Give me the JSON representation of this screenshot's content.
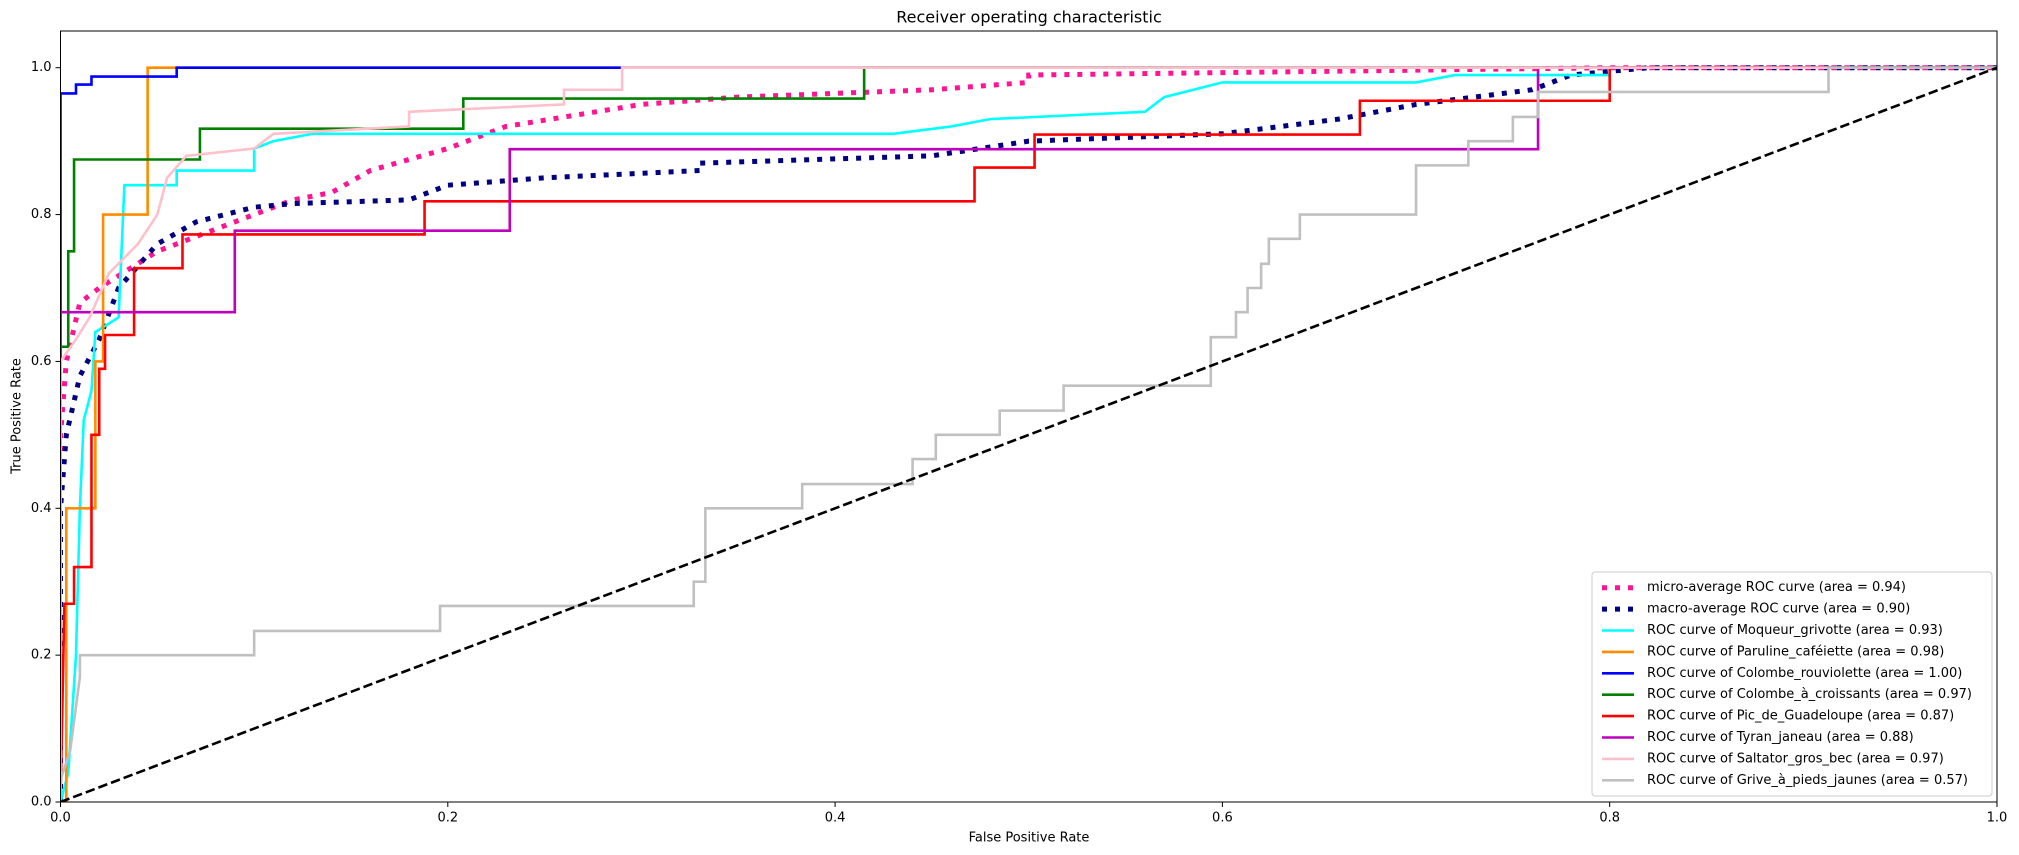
{
  "chart_data": {
    "type": "line",
    "title": "Receiver operating characteristic",
    "xlabel": "False Positive Rate",
    "ylabel": "True Positive Rate",
    "xlim": [
      0,
      1
    ],
    "ylim": [
      0,
      1.05
    ],
    "xticks": [
      {
        "value": 0,
        "label": "0.0"
      },
      0.2,
      0.4,
      0.6,
      0.8,
      {
        "value": 1,
        "label": "1.0"
      }
    ],
    "yticks": [
      {
        "value": 0,
        "label": "0.0"
      },
      0.2,
      0.4,
      0.6,
      0.8,
      {
        "value": 1,
        "label": "1.0"
      }
    ],
    "legend": "lower right",
    "reference_line": {
      "color": "black",
      "linestyle": "dashed",
      "x": [
        0,
        1
      ],
      "values": [
        0,
        1
      ]
    },
    "series": [
      {
        "name": "micro-average ROC curve (area = 0.94)",
        "color": "deeppink",
        "linestyle": "dotted",
        "x": [
          0,
          0,
          0.003,
          0.01,
          0.02,
          0.05,
          0.08,
          0.1,
          0.12,
          0.14,
          0.16,
          0.2,
          0.23,
          0.3,
          0.35,
          0.45,
          0.5,
          0.5,
          0.8,
          1
        ],
        "values": [
          0,
          0.5,
          0.6,
          0.68,
          0.7,
          0.75,
          0.78,
          0.8,
          0.82,
          0.83,
          0.86,
          0.89,
          0.92,
          0.95,
          0.96,
          0.97,
          0.98,
          0.99,
          1,
          1
        ]
      },
      {
        "name": "macro-average ROC curve (area = 0.90)",
        "color": "navy",
        "linestyle": "dotted",
        "x": [
          0,
          0,
          0.003,
          0.01,
          0.02,
          0.03,
          0.05,
          0.07,
          0.1,
          0.12,
          0.18,
          0.2,
          0.25,
          0.33,
          0.33,
          0.45,
          0.5,
          0.6,
          0.66,
          0.7,
          0.76,
          0.78,
          0.82,
          1
        ],
        "values": [
          0,
          0.4,
          0.5,
          0.58,
          0.63,
          0.7,
          0.76,
          0.79,
          0.81,
          0.815,
          0.82,
          0.84,
          0.85,
          0.86,
          0.87,
          0.88,
          0.9,
          0.91,
          0.93,
          0.95,
          0.97,
          0.99,
          1,
          1
        ]
      },
      {
        "name": "ROC curve of Moqueur_grivotte (area = 0.93)",
        "color": "aqua",
        "linestyle": "solid",
        "x": [
          0,
          0.004,
          0.008,
          0.01,
          0.012,
          0.016,
          0.018,
          0.024,
          0.03,
          0.033,
          0.06,
          0.06,
          0.1,
          0.1,
          0.11,
          0.13,
          0.43,
          0.46,
          0.48,
          0.56,
          0.57,
          0.6,
          0.7,
          0.72,
          0.8,
          0.8,
          1
        ],
        "values": [
          0,
          0.04,
          0.2,
          0.4,
          0.52,
          0.56,
          0.64,
          0.65,
          0.66,
          0.84,
          0.84,
          0.86,
          0.86,
          0.89,
          0.9,
          0.91,
          0.91,
          0.92,
          0.93,
          0.94,
          0.96,
          0.98,
          0.98,
          0.99,
          0.99,
          1,
          1
        ]
      },
      {
        "name": "ROC curve of Paruline_caféiette (area = 0.98)",
        "color": "darkorange",
        "linestyle": "solid",
        "x": [
          0,
          0.003,
          0.003,
          0.018,
          0.018,
          0.022,
          0.022,
          0.045,
          0.045,
          1
        ],
        "values": [
          0,
          0,
          0.4,
          0.4,
          0.6,
          0.6,
          0.8,
          0.8,
          1,
          1
        ]
      },
      {
        "name": "ROC curve of Colombe_rouviolette (area = 1.00)",
        "color": "blue",
        "linestyle": "solid",
        "x": [
          0,
          0,
          0.008,
          0.008,
          0.016,
          0.016,
          0.06,
          0.06,
          0.29,
          1
        ],
        "values": [
          0,
          0.965,
          0.965,
          0.977,
          0.977,
          0.988,
          0.988,
          1,
          1,
          1
        ]
      },
      {
        "name": "ROC curve of Colombe_à_croissants (area = 0.97)",
        "color": "green",
        "linestyle": "solid",
        "x": [
          0,
          0,
          0.004,
          0.004,
          0.007,
          0.007,
          0.072,
          0.072,
          0.208,
          0.208,
          0.415,
          0.415,
          1
        ],
        "values": [
          0,
          0.62,
          0.62,
          0.75,
          0.75,
          0.875,
          0.875,
          0.917,
          0.917,
          0.958,
          0.958,
          1,
          1
        ]
      },
      {
        "name": "ROC curve of Pic_de_Guadeloupe (area = 0.87)",
        "color": "red",
        "linestyle": "solid",
        "x": [
          0,
          0.002,
          0.007,
          0.007,
          0.016,
          0.016,
          0.02,
          0.02,
          0.023,
          0.023,
          0.038,
          0.038,
          0.063,
          0.063,
          0.188,
          0.188,
          0.472,
          0.472,
          0.503,
          0.503,
          0.671,
          0.671,
          0.8,
          0.8,
          1
        ],
        "values": [
          0,
          0.27,
          0.27,
          0.32,
          0.32,
          0.5,
          0.5,
          0.59,
          0.59,
          0.636,
          0.636,
          0.727,
          0.727,
          0.773,
          0.773,
          0.818,
          0.818,
          0.864,
          0.864,
          0.909,
          0.909,
          0.955,
          0.955,
          1,
          1
        ]
      },
      {
        "name": "ROC curve of Tyran_janeau (area = 0.88)",
        "color": "m",
        "linestyle": "solid",
        "x": [
          0,
          0,
          0.09,
          0.09,
          0.232,
          0.232,
          0.763,
          0.763,
          1
        ],
        "values": [
          0,
          0.667,
          0.667,
          0.778,
          0.778,
          0.889,
          0.889,
          1,
          1
        ]
      },
      {
        "name": "ROC curve of Saltator_gros_bec (area = 0.97)",
        "color": "pink",
        "linestyle": "solid",
        "x": [
          0,
          0,
          0.008,
          0.015,
          0.025,
          0.04,
          0.05,
          0.055,
          0.065,
          0.1,
          0.11,
          0.18,
          0.18,
          0.26,
          0.26,
          0.29,
          0.29,
          1
        ],
        "values": [
          0,
          0.6,
          0.63,
          0.66,
          0.72,
          0.76,
          0.8,
          0.85,
          0.88,
          0.89,
          0.91,
          0.92,
          0.94,
          0.95,
          0.97,
          0.97,
          1,
          1
        ]
      },
      {
        "name": "ROC curve of Grive_à_pieds_jaunes (area = 0.57)",
        "color": "silver",
        "linestyle": "solid",
        "x": [
          0,
          0,
          0.005,
          0.01,
          0.01,
          0.1,
          0.1,
          0.196,
          0.196,
          0.327,
          0.327,
          0.333,
          0.333,
          0.383,
          0.383,
          0.44,
          0.44,
          0.452,
          0.452,
          0.485,
          0.485,
          0.518,
          0.518,
          0.594,
          0.594,
          0.607,
          0.607,
          0.613,
          0.613,
          0.62,
          0.62,
          0.624,
          0.624,
          0.64,
          0.64,
          0.7,
          0.7,
          0.727,
          0.727,
          0.75,
          0.75,
          0.763,
          0.763,
          0.913,
          0.913,
          1
        ],
        "values": [
          0,
          0.03,
          0.07,
          0.17,
          0.2,
          0.2,
          0.233,
          0.233,
          0.267,
          0.267,
          0.3,
          0.3,
          0.4,
          0.4,
          0.433,
          0.433,
          0.467,
          0.467,
          0.5,
          0.5,
          0.533,
          0.533,
          0.567,
          0.567,
          0.633,
          0.633,
          0.667,
          0.667,
          0.7,
          0.7,
          0.733,
          0.733,
          0.767,
          0.767,
          0.8,
          0.8,
          0.867,
          0.867,
          0.9,
          0.9,
          0.933,
          0.933,
          0.967,
          0.967,
          1,
          1
        ]
      }
    ]
  }
}
